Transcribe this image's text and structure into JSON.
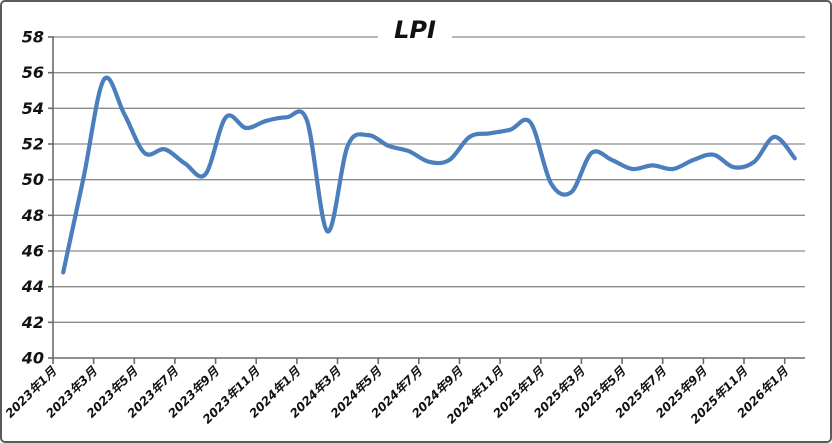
{
  "chart_data": {
    "type": "line",
    "title": "LPI",
    "series_name": "LPI",
    "x": [
      "2023年1月",
      "2023年2月",
      "2023年3月",
      "2023年4月",
      "2023年5月",
      "2023年6月",
      "2023年7月",
      "2023年8月",
      "2023年9月",
      "2023年10月",
      "2023年11月",
      "2023年12月",
      "2024年1月",
      "2024年2月",
      "2024年3月",
      "2024年4月",
      "2024年5月",
      "2024年6月",
      "2024年7月",
      "2024年8月",
      "2024年9月",
      "2024年10月",
      "2024年11月",
      "2024年12月",
      "2025年1月",
      "2025年2月",
      "2025年3月",
      "2025年4月",
      "2025年5月",
      "2025年6月",
      "2025年7月",
      "2025年8月",
      "2025年9月",
      "2025年10月",
      "2025年11月",
      "2025年12月",
      "2026年1月"
    ],
    "values": [
      44.8,
      50.1,
      55.6,
      53.7,
      51.5,
      51.7,
      50.9,
      50.3,
      53.5,
      52.9,
      53.3,
      53.5,
      53.3,
      47.1,
      51.9,
      52.5,
      51.9,
      51.6,
      51.0,
      51.1,
      52.4,
      52.6,
      52.8,
      53.2,
      49.8,
      49.3,
      51.5,
      51.1,
      50.6,
      50.8,
      50.6,
      51.1,
      51.4,
      50.7,
      51.0,
      52.4,
      51.2
    ],
    "x_tick_labels": [
      "2023年1月",
      "2023年3月",
      "2023年5月",
      "2023年7月",
      "2023年9月",
      "2023年11月",
      "2024年1月",
      "2024年3月",
      "2024年5月",
      "2024年7月",
      "2024年9月",
      "2024年11月",
      "2025年1月",
      "2025年3月",
      "2025年5月",
      "2025年7月",
      "2025年9月",
      "2025年11月",
      "2026年1月"
    ],
    "label_every": 2,
    "xlabel": "",
    "ylabel": "",
    "ylim": [
      40,
      58
    ],
    "y_tick_step": 2,
    "y_tick_labels": [
      "40",
      "42",
      "44",
      "46",
      "48",
      "50",
      "52",
      "54",
      "56",
      "58"
    ],
    "grid": true,
    "smooth": true,
    "legend": "none",
    "line_color": "#4a7ebd",
    "grid_color": "#8c8c8c",
    "axis_color": "#6b6b6b",
    "text_color": "#111111",
    "background": "#ffffff",
    "border_color": "#5a5a5a"
  }
}
